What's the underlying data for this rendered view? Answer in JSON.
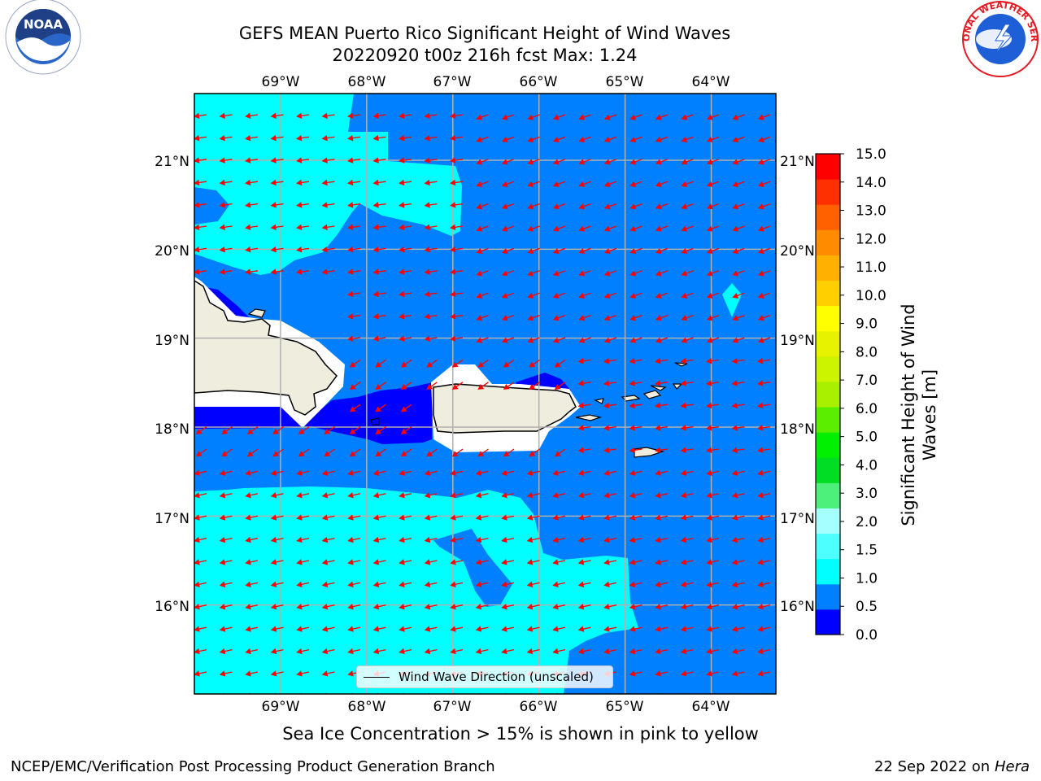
{
  "title": {
    "line1": "GEFS MEAN Puerto Rico Significant Height of Wind Waves",
    "line2": "20220920 t00z 216h fcst   Max: 1.24"
  },
  "map": {
    "lon_ticks": [
      "69°W",
      "68°W",
      "67°W",
      "66°W",
      "65°W",
      "64°W"
    ],
    "lat_ticks": [
      "21°N",
      "20°N",
      "19°N",
      "18°N",
      "17°N",
      "16°N"
    ],
    "lon_range": [
      -70.0,
      -63.25
    ],
    "lat_range": [
      15.0,
      21.75
    ],
    "land_color": "#efeddd",
    "ocean_colors": {
      "0.0-0.5": "#0000ff",
      "0.5-1.0": "#0080ff",
      "1.0-1.5": "#00ffff"
    },
    "arrow_color": "#ff0000"
  },
  "colorbar": {
    "ticks": [
      "15.0",
      "14.0",
      "13.0",
      "12.0",
      "11.0",
      "10.0",
      "9.0",
      "8.0",
      "7.0",
      "6.0",
      "5.0",
      "4.0",
      "3.0",
      "2.0",
      "1.5",
      "1.0",
      "0.5",
      "0.0"
    ],
    "colors": [
      "#0000ff",
      "#0080ff",
      "#00ffff",
      "#4dffff",
      "#a6ffff",
      "#4cf07a",
      "#00dd22",
      "#00f000",
      "#5cee00",
      "#a8f000",
      "#ccf400",
      "#e6f200",
      "#ffff00",
      "#ffd000",
      "#ffb000",
      "#ff8c00",
      "#ff6000",
      "#ff3000",
      "#ff0000"
    ],
    "label": "Significant Height of Wind Waves [m]"
  },
  "legend": {
    "label": "Wind Wave Direction (unscaled)"
  },
  "note": "Sea Ice Concentration > 15% is shown in pink to yellow",
  "footer": {
    "left": "NCEP/EMC/Verification Post Processing Product Generation Branch",
    "right_date": "22 Sep 2022 on",
    "right_host": "Hera"
  },
  "logos": {
    "noaa_text": "NOAA",
    "nws_text": "NATIONAL WEATHER SERVICE"
  }
}
